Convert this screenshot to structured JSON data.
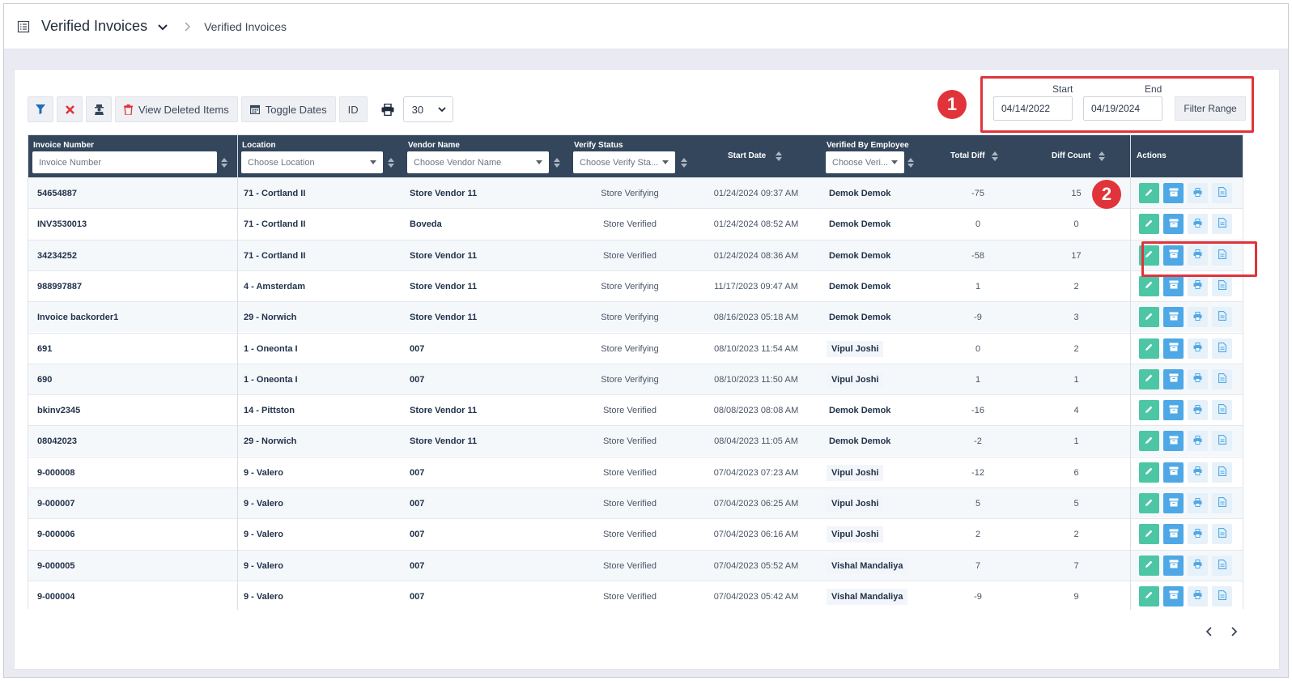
{
  "header": {
    "title": "Verified Invoices",
    "breadcrumb": "Verified Invoices"
  },
  "toolbar": {
    "view_deleted": "View Deleted Items",
    "toggle_dates": "Toggle Dates",
    "id_label": "ID",
    "page_size": "30"
  },
  "range": {
    "start_label": "Start",
    "end_label": "End",
    "start_value": "04/14/2022",
    "end_value": "04/19/2024",
    "filter_button": "Filter Range"
  },
  "badges": {
    "one": "1",
    "two": "2"
  },
  "columns": {
    "invoice_number": "Invoice Number",
    "invoice_placeholder": "Invoice Number",
    "location": "Location",
    "location_placeholder": "Choose Location",
    "vendor_name": "Vendor Name",
    "vendor_placeholder": "Choose Vendor Name",
    "verify_status": "Verify Status",
    "verify_placeholder": "Choose Verify Sta...",
    "start_date": "Start Date",
    "verified_by": "Verified By Employee",
    "verified_placeholder": "Choose Veri...",
    "total_diff": "Total Diff",
    "diff_count": "Diff Count",
    "actions": "Actions"
  },
  "rows": [
    {
      "invoice": "54654887",
      "location": "71 - Cortland II",
      "vendor": "Store Vendor 11",
      "status": "Store Verifying",
      "start": "01/24/2024 09:37 AM",
      "employee": "Demok Demok",
      "total": "-75",
      "count": "15"
    },
    {
      "invoice": "INV3530013",
      "location": "71 - Cortland II",
      "vendor": "Boveda",
      "status": "Store Verified",
      "start": "01/24/2024 08:52 AM",
      "employee": "Demok Demok",
      "total": "0",
      "count": "0"
    },
    {
      "invoice": "34234252",
      "location": "71 - Cortland II",
      "vendor": "Store Vendor 11",
      "status": "Store Verified",
      "start": "01/24/2024 08:36 AM",
      "employee": "Demok Demok",
      "total": "-58",
      "count": "17"
    },
    {
      "invoice": "988997887",
      "location": "4 - Amsterdam",
      "vendor": "Store Vendor 11",
      "status": "Store Verifying",
      "start": "11/17/2023 09:47 AM",
      "employee": "Demok Demok",
      "total": "1",
      "count": "2"
    },
    {
      "invoice": "Invoice backorder1",
      "location": "29 - Norwich",
      "vendor": "Store Vendor 11",
      "status": "Store Verifying",
      "start": "08/16/2023 05:18 AM",
      "employee": "Demok Demok",
      "total": "-9",
      "count": "3"
    },
    {
      "invoice": "691",
      "location": "1 - Oneonta I",
      "vendor": "007",
      "status": "Store Verifying",
      "start": "08/10/2023 11:54 AM",
      "employee": "Vipul Joshi",
      "total": "0",
      "count": "2"
    },
    {
      "invoice": "690",
      "location": "1 - Oneonta I",
      "vendor": "007",
      "status": "Store Verifying",
      "start": "08/10/2023 11:50 AM",
      "employee": "Vipul Joshi",
      "total": "1",
      "count": "1"
    },
    {
      "invoice": "bkinv2345",
      "location": "14 - Pittston",
      "vendor": "Store Vendor 11",
      "status": "Store Verified",
      "start": "08/08/2023 08:08 AM",
      "employee": "Demok Demok",
      "total": "-16",
      "count": "4"
    },
    {
      "invoice": "08042023",
      "location": "29 - Norwich",
      "vendor": "Store Vendor 11",
      "status": "Store Verified",
      "start": "08/04/2023 11:05 AM",
      "employee": "Demok Demok",
      "total": "-2",
      "count": "1"
    },
    {
      "invoice": "9-000008",
      "location": "9 - Valero",
      "vendor": "007",
      "status": "Store Verified",
      "start": "07/04/2023 07:23 AM",
      "employee": "Vipul Joshi",
      "total": "-12",
      "count": "6"
    },
    {
      "invoice": "9-000007",
      "location": "9 - Valero",
      "vendor": "007",
      "status": "Store Verified",
      "start": "07/04/2023 06:25 AM",
      "employee": "Vipul Joshi",
      "total": "5",
      "count": "5"
    },
    {
      "invoice": "9-000006",
      "location": "9 - Valero",
      "vendor": "007",
      "status": "Store Verified",
      "start": "07/04/2023 06:16 AM",
      "employee": "Vipul Joshi",
      "total": "2",
      "count": "2"
    },
    {
      "invoice": "9-000005",
      "location": "9 - Valero",
      "vendor": "007",
      "status": "Store Verified",
      "start": "07/04/2023 05:52 AM",
      "employee": "Vishal Mandaliya",
      "total": "7",
      "count": "7"
    },
    {
      "invoice": "9-000004",
      "location": "9 - Valero",
      "vendor": "007",
      "status": "Store Verified",
      "start": "07/04/2023 05:42 AM",
      "employee": "Vishal Mandaliya",
      "total": "-9",
      "count": "9"
    }
  ],
  "colors": {
    "header_bg": "#33465c",
    "edit_green": "#4cc6a5",
    "archive_blue": "#4ea8e6",
    "annotation_red": "#e0343a"
  }
}
